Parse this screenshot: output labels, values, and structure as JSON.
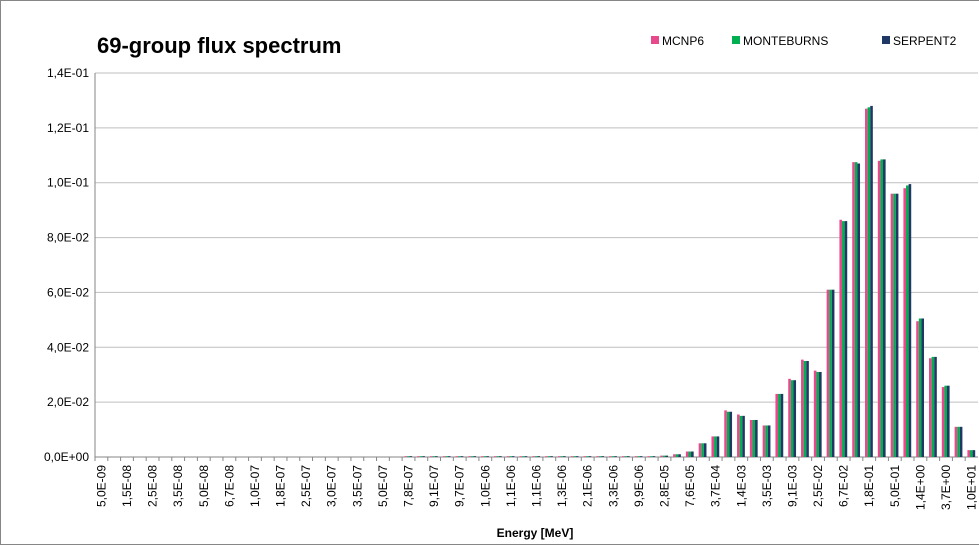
{
  "chart_data": {
    "type": "bar",
    "title": "69-group  flux spectrum",
    "x_label": "Energy [MeV]",
    "categories": [
      "5,0E-09",
      null,
      "1,5E-08",
      null,
      "2,5E-08",
      null,
      "3,5E-08",
      null,
      "5,0E-08",
      null,
      "6,7E-08",
      null,
      "1,0E-07",
      null,
      "1,8E-07",
      null,
      "2,5E-07",
      null,
      "3,0E-07",
      null,
      "3,5E-07",
      null,
      "5,0E-07",
      null,
      "7,8E-07",
      null,
      "9,1E-07",
      null,
      "9,7E-07",
      null,
      "1,0E-06",
      null,
      "1,1E-06",
      null,
      "1,1E-06",
      null,
      "1,3E-06",
      null,
      "2,1E-06",
      null,
      "3,3E-06",
      null,
      "9,9E-06",
      null,
      "2,8E-05",
      null,
      "7,6E-05",
      null,
      "3,7E-04",
      null,
      "1,4E-03",
      null,
      "3,5E-03",
      null,
      "9,1E-03",
      null,
      "2,5E-02",
      null,
      "6,7E-02",
      null,
      "1,8E-01",
      null,
      "5,0E-01",
      null,
      "1,4E+00",
      null,
      "3,7E+00",
      null,
      "1,0E+01"
    ],
    "series": [
      {
        "name": "MCNP6",
        "color": "#e8498c",
        "values": [
          0,
          0,
          0,
          0,
          0,
          0,
          0,
          0,
          0,
          0,
          0,
          0,
          0,
          0,
          0,
          0,
          0,
          0,
          0,
          0,
          0,
          0,
          0,
          0,
          0.0003,
          0.0003,
          0.0003,
          0.0003,
          0.0003,
          0.0003,
          0.0003,
          0.0003,
          0.0003,
          0.0003,
          0.0003,
          0.0003,
          0.0003,
          0.0003,
          0.0003,
          0.0003,
          0.0003,
          0.0003,
          0.0003,
          0.0003,
          0.0005,
          0.001,
          0.002,
          0.005,
          0.0075,
          0.017,
          0.0155,
          0.0135,
          0.0115,
          0.023,
          0.0285,
          0.0355,
          0.0315,
          0.061,
          0.0865,
          0.1075,
          0.127,
          0.108,
          0.096,
          0.098,
          0.0495,
          0.036,
          0.0255,
          0.011,
          0.0025
        ]
      },
      {
        "name": "MONTEBURNS",
        "color": "#00b050",
        "values": [
          0,
          0,
          0,
          0,
          0,
          0,
          0,
          0,
          0,
          0,
          0,
          0,
          0,
          0,
          0,
          0,
          0,
          0,
          0,
          0,
          0,
          0,
          0,
          0,
          0.0003,
          0.0003,
          0.0003,
          0.0003,
          0.0003,
          0.0003,
          0.0003,
          0.0003,
          0.0003,
          0.0003,
          0.0003,
          0.0003,
          0.0003,
          0.0003,
          0.0003,
          0.0003,
          0.0003,
          0.0003,
          0.0003,
          0.0003,
          0.0005,
          0.001,
          0.002,
          0.005,
          0.0075,
          0.0165,
          0.015,
          0.0135,
          0.0115,
          0.023,
          0.028,
          0.035,
          0.031,
          0.061,
          0.086,
          0.1075,
          0.1275,
          0.1085,
          0.096,
          0.099,
          0.0505,
          0.0365,
          0.026,
          0.011,
          0.0025
        ]
      },
      {
        "name": "SERPENT2",
        "color": "#1f3864",
        "values": [
          0,
          0,
          0,
          0,
          0,
          0,
          0,
          0,
          0,
          0,
          0,
          0,
          0,
          0,
          0,
          0,
          0,
          0,
          0,
          0,
          0,
          0,
          0,
          0,
          0.0003,
          0.0003,
          0.0003,
          0.0003,
          0.0003,
          0.0003,
          0.0003,
          0.0003,
          0.0003,
          0.0003,
          0.0003,
          0.0003,
          0.0003,
          0.0003,
          0.0003,
          0.0003,
          0.0003,
          0.0003,
          0.0003,
          0.0003,
          0.0005,
          0.001,
          0.002,
          0.005,
          0.0075,
          0.0165,
          0.015,
          0.0135,
          0.0115,
          0.023,
          0.028,
          0.035,
          0.031,
          0.061,
          0.086,
          0.107,
          0.128,
          0.1085,
          0.096,
          0.0995,
          0.0505,
          0.0365,
          0.026,
          0.011,
          0.0025
        ]
      }
    ],
    "ylim": [
      0,
      0.14
    ],
    "yticks": [
      {
        "value": 0,
        "label": "0,0E+00"
      },
      {
        "value": 0.02,
        "label": "2,0E-02"
      },
      {
        "value": 0.04,
        "label": "4,0E-02"
      },
      {
        "value": 0.06,
        "label": "6,0E-02"
      },
      {
        "value": 0.08,
        "label": "8,0E-02"
      },
      {
        "value": 0.1,
        "label": "1,0E-01"
      },
      {
        "value": 0.12,
        "label": "1,2E-01"
      },
      {
        "value": 0.14,
        "label": "1,4E-01"
      }
    ],
    "grid": true,
    "legend": "top-right"
  }
}
